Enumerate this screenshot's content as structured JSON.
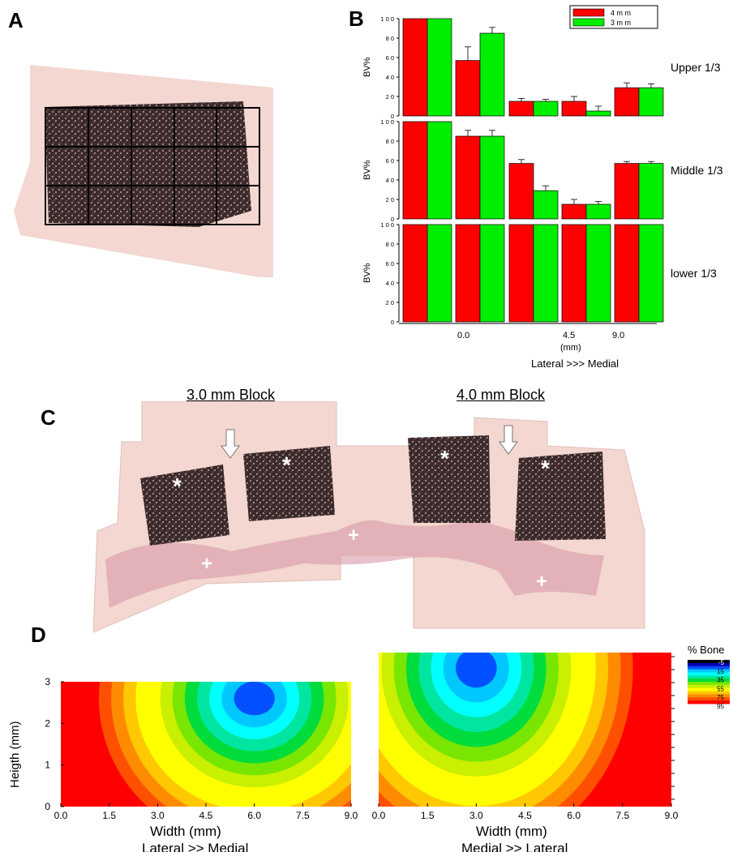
{
  "panels": {
    "a": {
      "letter": "A"
    },
    "b": {
      "letter": "B"
    },
    "c": {
      "letter": "C",
      "label_left": "3.0 mm Block",
      "label_right": "4.0 mm Block"
    },
    "d": {
      "letter": "D"
    }
  },
  "colors": {
    "red": "#ff0000",
    "green": "#00ee00",
    "tissue_pink": "#f3d7d0",
    "tissue_dark": "#3a2a2c"
  },
  "chart_data": [
    {
      "type": "bar",
      "ylabel": "BV%",
      "row_label": "Upper 1/3",
      "categories": [
        "0.0",
        "",
        "4.5",
        "",
        "9.0"
      ],
      "ylim": [
        0,
        100
      ],
      "yticks": [
        "0",
        "2 0",
        "4 0",
        "6 0",
        "8 0",
        "1 0 0"
      ],
      "series": [
        {
          "name": "4 m m",
          "color": "#ff0000",
          "values": [
            100,
            57,
            15,
            15,
            29
          ],
          "errors": [
            0,
            14,
            3,
            5,
            5
          ]
        },
        {
          "name": "3 m m",
          "color": "#00ee00",
          "values": [
            100,
            85,
            15,
            5,
            29
          ],
          "errors": [
            0,
            6,
            2,
            5,
            4
          ]
        }
      ]
    },
    {
      "type": "bar",
      "ylabel": "BV%",
      "row_label": "Middle 1/3",
      "categories": [
        "0.0",
        "",
        "4.5",
        "",
        "9.0"
      ],
      "ylim": [
        0,
        100
      ],
      "yticks": [
        "0",
        "2 0",
        "4 0",
        "6 0",
        "8 0",
        "1 0 0"
      ],
      "series": [
        {
          "name": "4 m m",
          "color": "#ff0000",
          "values": [
            100,
            85,
            57,
            15,
            57
          ],
          "errors": [
            0,
            6,
            4,
            5,
            2
          ]
        },
        {
          "name": "3 m m",
          "color": "#00ee00",
          "values": [
            100,
            85,
            29,
            15,
            57
          ],
          "errors": [
            0,
            6,
            5,
            3,
            2
          ]
        }
      ]
    },
    {
      "type": "bar",
      "ylabel": "BV%",
      "row_label": "lower 1/3",
      "categories": [
        "0.0",
        "",
        "4.5",
        "",
        "9.0"
      ],
      "xlabel": "(mm)",
      "xlabel2": "Lateral >>> Medial",
      "ylim": [
        0,
        100
      ],
      "yticks": [
        "0",
        "2 0",
        "4 0",
        "6 0",
        "8 0",
        "1 0 0"
      ],
      "series": [
        {
          "name": "4 m m",
          "color": "#ff0000",
          "values": [
            100,
            100,
            100,
            100,
            100
          ],
          "errors": [
            0,
            0,
            0,
            0,
            0
          ]
        },
        {
          "name": "3 m m",
          "color": "#00ee00",
          "values": [
            100,
            100,
            100,
            100,
            100
          ],
          "errors": [
            0,
            0,
            0,
            0,
            0
          ]
        }
      ]
    },
    {
      "type": "heatmap",
      "xlabel": "Width (mm)",
      "xlabel2": "Lateral >> Medial",
      "ylabel": "Heigth (mm)",
      "xlim": [
        0,
        9
      ],
      "ylim": [
        0,
        3
      ],
      "xticks": [
        "0.0",
        "1.5",
        "3.0",
        "4.5",
        "6.0",
        "7.5",
        "9.0"
      ],
      "yticks": [
        "0",
        "1",
        "2",
        "3"
      ],
      "minimum": {
        "x": 6.0,
        "y": 2.6,
        "value": 5
      },
      "edge_value": 95
    },
    {
      "type": "heatmap",
      "xlabel": "Width (mm)",
      "xlabel2": "Medial >> Lateral",
      "xlim": [
        0,
        9
      ],
      "ylim": [
        0,
        3
      ],
      "xticks": [
        "0.0",
        "1.5",
        "3.0",
        "4.5",
        "6.0",
        "7.5",
        "9.0"
      ],
      "minimum": {
        "x": 3.0,
        "y": 2.7,
        "value": 5
      },
      "edge_value": 95
    }
  ],
  "colorbar": {
    "title": "% Bone",
    "ticks": [
      "-5",
      "15",
      "35",
      "55",
      "75",
      "95"
    ],
    "colors": [
      "#000000",
      "#0000b4",
      "#0050ff",
      "#00c8ff",
      "#00ffff",
      "#00e6a0",
      "#00dc3c",
      "#78e600",
      "#c8f000",
      "#ffff00",
      "#ffc800",
      "#ff8c00",
      "#ff5000",
      "#ff0000"
    ]
  }
}
